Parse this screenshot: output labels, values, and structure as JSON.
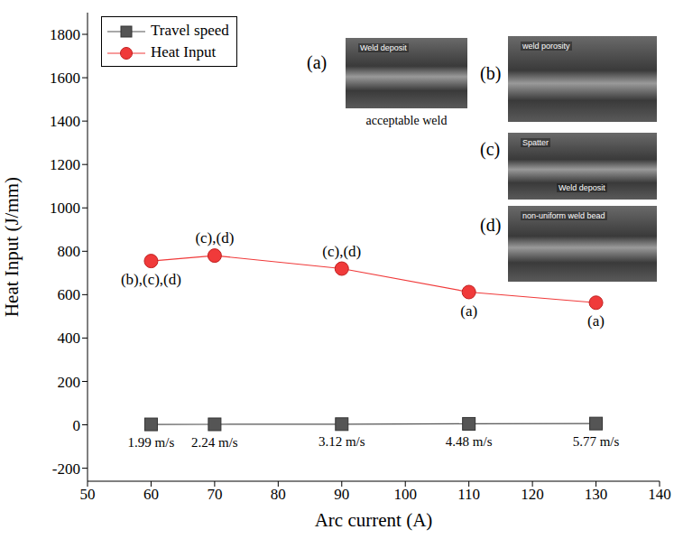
{
  "chart_data": {
    "type": "line",
    "xlabel": "Arc current (A)",
    "ylabel": "Heat Input (J/mm)",
    "xlim": [
      50,
      140
    ],
    "xticks": [
      50,
      60,
      70,
      80,
      90,
      100,
      110,
      120,
      130,
      140
    ],
    "ylim": [
      -260,
      1900
    ],
    "yticks": [
      -200,
      0,
      200,
      400,
      600,
      800,
      1000,
      1200,
      1400,
      1600,
      1800
    ],
    "grid": false,
    "legend": "upper left",
    "x": [
      60,
      70,
      90,
      110,
      130
    ],
    "series": [
      {
        "name": "Travel speed",
        "color": "#555555",
        "marker": "square",
        "line_style": "solid",
        "values": [
          1.99,
          2.24,
          3.12,
          4.48,
          5.77
        ],
        "data_labels": true,
        "value_labels": [
          "1.99 m/s",
          "2.24 m/s",
          "3.12 m/s",
          "4.48 m/s",
          "5.77 m/s"
        ]
      },
      {
        "name": "Heat Input",
        "color": "#f03a3a",
        "marker": "circle",
        "line_style": "solid",
        "values": [
          755,
          780,
          720,
          612,
          563
        ],
        "point_labels": [
          "(b),(c),(d)",
          "(c),(d)",
          "(c),(d)",
          "(a)",
          "(a)"
        ]
      }
    ],
    "insets": [
      {
        "label": "(a)",
        "notes": [
          "Weld deposit"
        ],
        "caption": "acceptable weld"
      },
      {
        "label": "(b)",
        "notes": [
          "weld porosity"
        ]
      },
      {
        "label": "(c)",
        "notes": [
          "Spatter",
          "Weld deposit"
        ]
      },
      {
        "label": "(d)",
        "notes": [
          "non-uniform weld bead"
        ]
      }
    ]
  }
}
